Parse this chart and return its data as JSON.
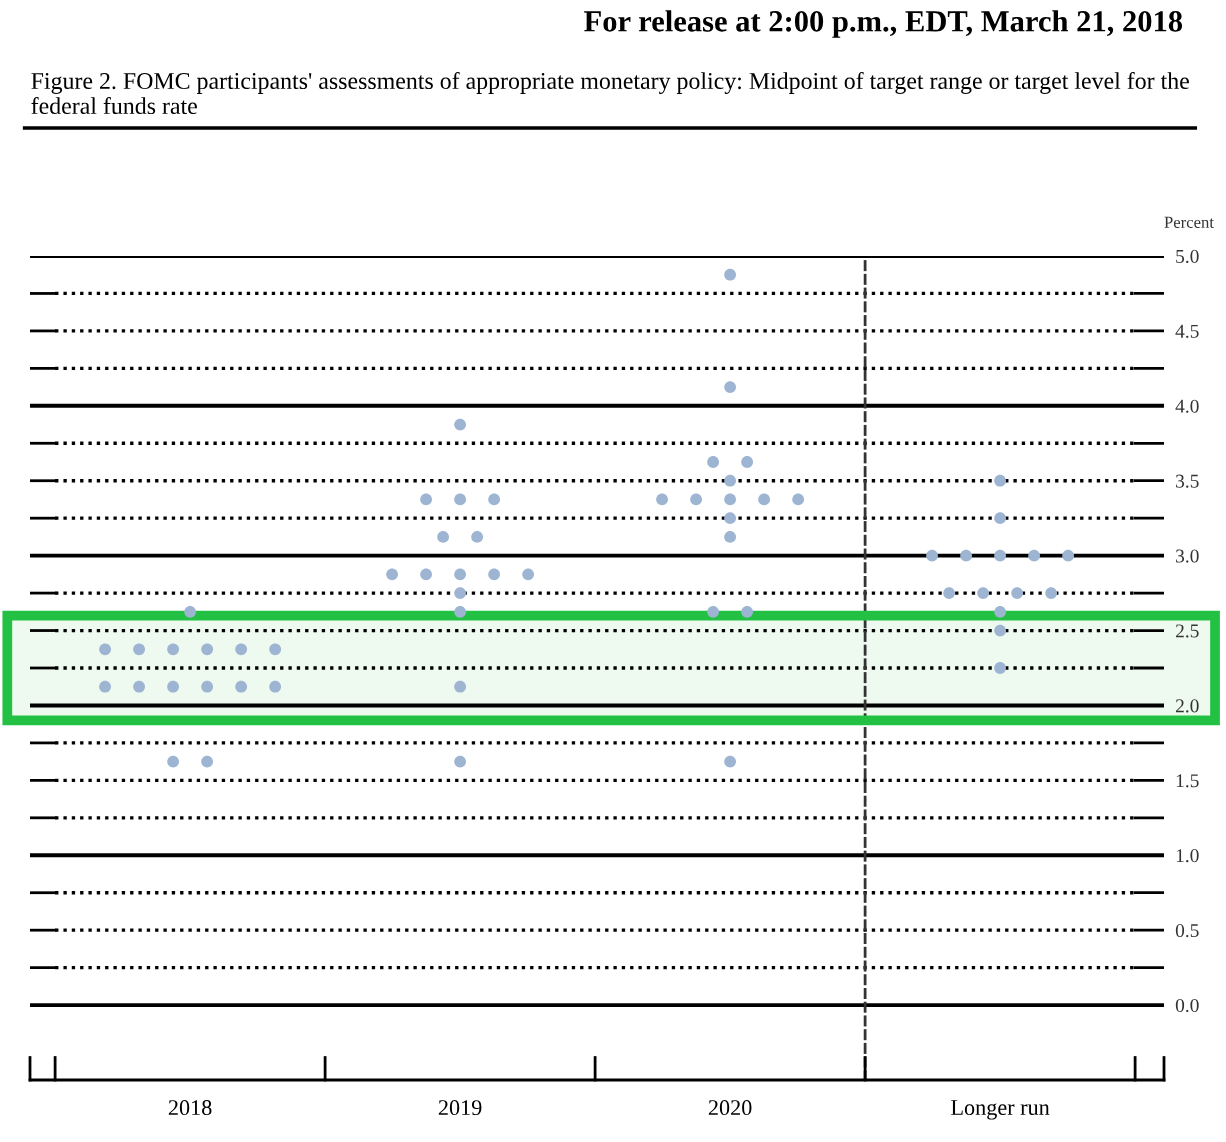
{
  "chart_data": {
    "type": "scatter",
    "title": "Figure 2. FOMC participants' assessments of appropriate monetary policy: Midpoint of target range or target level for the federal funds rate",
    "annotations": [
      "For release at 2:00 p.m., EDT, March 21, 2018"
    ],
    "ylabel": "Percent",
    "categories": [
      "2018",
      "2019",
      "2020",
      "Longer run"
    ],
    "series": [
      {
        "color": "#9db5d3",
        "values": [
          1.625,
          1.625,
          1.625,
          2.25
        ]
      },
      {
        "color": "#9db5d3",
        "values": [
          1.625,
          2.125,
          2.625,
          2.5
        ]
      },
      {
        "color": "#9db5d3",
        "values": [
          2.125,
          2.625,
          2.625,
          2.625
        ]
      },
      {
        "color": "#9db5d3",
        "values": [
          2.125,
          2.75,
          3.125,
          2.75
        ]
      },
      {
        "color": "#9db5d3",
        "values": [
          2.125,
          2.875,
          3.25,
          2.75
        ]
      },
      {
        "color": "#9db5d3",
        "values": [
          2.125,
          2.875,
          3.375,
          2.75
        ]
      },
      {
        "color": "#9db5d3",
        "values": [
          2.125,
          2.875,
          3.375,
          2.75
        ]
      },
      {
        "color": "#9db5d3",
        "values": [
          2.125,
          2.875,
          3.375,
          3.0
        ]
      },
      {
        "color": "#9db5d3",
        "values": [
          2.375,
          2.875,
          3.375,
          3.0
        ]
      },
      {
        "color": "#9db5d3",
        "values": [
          2.375,
          3.125,
          3.375,
          3.0
        ]
      },
      {
        "color": "#9db5d3",
        "values": [
          2.375,
          3.125,
          3.5,
          3.0
        ]
      },
      {
        "color": "#9db5d3",
        "values": [
          2.375,
          3.375,
          3.625,
          3.0
        ]
      },
      {
        "color": "#9db5d3",
        "values": [
          2.375,
          3.375,
          3.625,
          3.25
        ]
      },
      {
        "color": "#9db5d3",
        "values": [
          2.375,
          3.375,
          4.125,
          3.5
        ]
      },
      {
        "color": "#9db5d3",
        "values": [
          2.625,
          3.875,
          4.875,
          null
        ]
      }
    ],
    "marker": "circle",
    "ylim": [
      -0.5,
      5.0
    ],
    "yticks": [
      {
        "value": 0,
        "label": "0.0"
      },
      {
        "value": 0.25,
        "label": null
      },
      0.5,
      {
        "value": 0.75,
        "label": null
      },
      {
        "value": 1,
        "label": "1.0"
      },
      {
        "value": 1.25,
        "label": null
      },
      1.5,
      {
        "value": 1.75,
        "label": null
      },
      {
        "value": 2,
        "label": "2.0"
      },
      {
        "value": 2.25,
        "label": null
      },
      2.5,
      {
        "value": 2.75,
        "label": null
      },
      {
        "value": 3,
        "label": "3.0"
      },
      {
        "value": 3.25,
        "label": null
      },
      3.5,
      {
        "value": 3.75,
        "label": null
      },
      {
        "value": 4,
        "label": "4.0"
      },
      {
        "value": 4.25,
        "label": null
      },
      4.5,
      {
        "value": 4.75,
        "label": null
      },
      {
        "value": 5,
        "label": "5.0"
      }
    ],
    "grid": "y",
    "bands": [
      {
        "axis": "y",
        "from": 1.9,
        "to": 2.6,
        "color": "#22c043"
      }
    ]
  }
}
